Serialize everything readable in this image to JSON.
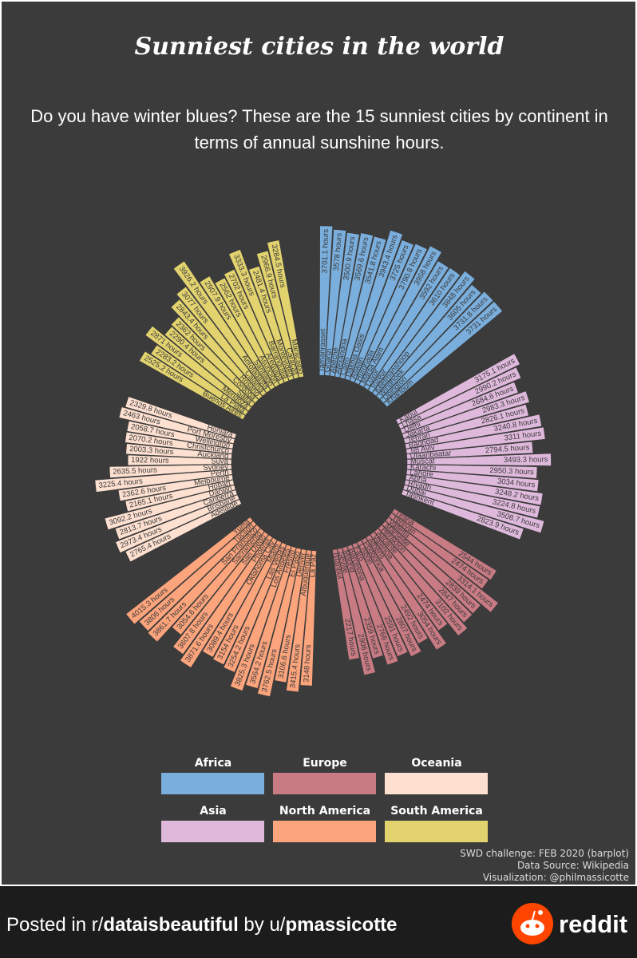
{
  "chart_data": {
    "type": "radial_bar",
    "title": "Sunniest cities in the world",
    "subtitle": [
      "Do you have winter blues? These are the 15 sunniest cities by continent in",
      "terms of annual sunshine hours."
    ],
    "groups": [
      {
        "name": "Africa",
        "color": "#7aaedc",
        "categories": [
          "Tamanrasset",
          "Ghanzi",
          "Abéché",
          "Alexandria",
          "Cairo",
          "Dakhla Oasis",
          "Aswan",
          "Hurghada",
          "Marsa Alam",
          "Luxor",
          "Tozeur",
          "Keetmanshoop",
          "Windhoek",
          "Upington",
          "Khartoum"
        ],
        "values": [
          3701.1,
          3578,
          3500.9,
          3569.6,
          3541.8,
          3943.4,
          3725,
          3790.8,
          3958,
          3592,
          3610,
          3848,
          3605,
          3731.8,
          3731
        ],
        "value_labels": [
          "3701.1 hours",
          "3578 hours",
          "3500.9 hours",
          "3569.6 hours",
          "3541.8 hours",
          "3943.4 hours",
          "3725 hours",
          "3790.8 hours",
          "3958 hours",
          "3592 hours",
          "3610 hours",
          "3848 hours",
          "3605 hours",
          "3731.8 hours",
          "3731 hours"
        ]
      },
      {
        "name": "Asia",
        "color": "#dfb9dc",
        "categories": [
          "Kabul",
          "Lhasa",
          "Delhi",
          "Jakarta",
          "Tehran",
          "Baghdad",
          "Tel Aviv",
          "Ulaanbaatar",
          "Muscat",
          "Karachi",
          "Lahore",
          "Abha",
          "Riyadh",
          "Dubai",
          "Tashkent"
        ],
        "values": [
          3175.1,
          2990.2,
          2684.6,
          2983.3,
          2826.1,
          3240.8,
          3311,
          2794.5,
          3493.3,
          2950.3,
          3034,
          3248.2,
          3224.8,
          3508.7,
          2823.9
        ],
        "value_labels": [
          "3175.1 hours",
          "2990.2 hours",
          "2684.6 hours",
          "2983.3 hours",
          "2826.1 hours",
          "3240.8 hours",
          "3311 hours",
          "2794.5 hours",
          "3493.3 hours",
          "2950.3 hours",
          "3034 hours",
          "3248.2 hours",
          "3224.8 hours",
          "3508.7 hours",
          "2823.9 hours"
        ]
      },
      {
        "name": "Europe",
        "color": "#c97b84",
        "categories": [
          "Tirana",
          "Yerevan",
          "Valletta",
          "Marseille",
          "Heraklion",
          "Alicante",
          "Valencia",
          "Athens",
          "Podgorica",
          "Lisbon",
          "Faro",
          "Barcelona",
          "Madrid",
          "Seville",
          "Istanbul"
        ],
        "values": [
          2544,
          2474,
          3314.1,
          2839,
          2847,
          3102,
          2474,
          3054,
          2492,
          2807,
          2591,
          2766,
          2359,
          2906,
          2217
        ],
        "value_labels": [
          "2544 hours",
          "2474 hours",
          "3314.1 hours",
          "2839 hours",
          "2847 hours",
          "3102 hours",
          "2474 hours",
          "3054 hours",
          "2492 hours",
          "2807 hours",
          "2591 hours",
          "2766 hours",
          "2359 hours",
          "2906 hours",
          "2217 hours"
        ]
      },
      {
        "name": "North America",
        "color": "#fca47c",
        "categories": [
          "La Paz",
          "Albuquerque",
          "Denver",
          "El Paso",
          "Fresno",
          "Los Angeles",
          "Las Vegas",
          "Miami",
          "Oklahoma City",
          "Phoenix",
          "San Diego",
          "Sacramento",
          "San Francisco",
          "Tucson",
          "Yuma"
        ],
        "values": [
          3148,
          3415.4,
          3106.6,
          3762.5,
          3564.2,
          3825.3,
          3254.2,
          3154,
          3089.4,
          3871.6,
          3607.8,
          3054.6,
          3861.7,
          3806,
          4015.3
        ],
        "value_labels": [
          "3148 hours",
          "3415.4 hours",
          "3106.6 hours",
          "3762.5 hours",
          "3564.2 hours",
          "3825.3 hours",
          "3254.2 hours",
          "3154 hours",
          "3089.4 hours",
          "3871.6 hours",
          "3607.8 hours",
          "3054.6 hours",
          "3861.7 hours",
          "3806 hours",
          "4015.3 hours"
        ]
      },
      {
        "name": "Oceania",
        "color": "#fde0d0",
        "categories": [
          "Adelaide",
          "Brisbane",
          "Canberra",
          "Darwin",
          "Hobart",
          "Melbourne",
          "Perth",
          "Sydney",
          "Suva",
          "Auckland",
          "Christchurch",
          "Wellington",
          "Port Moresby",
          "Honiara"
        ],
        "values": [
          2765.4,
          2973.4,
          2813.7,
          3092.2,
          2165.1,
          2362.6,
          3225.4,
          2635.5,
          1922,
          2003.3,
          2070.2,
          2058.7,
          2463,
          2329.8
        ],
        "value_labels": [
          "2765.4 hours",
          "2973.4 hours",
          "2813.7 hours",
          "3092.2 hours",
          "2165.1 hours",
          "2362.6 hours",
          "3225.4 hours",
          "2635.5 hours",
          "1922 hours",
          "2003.3 hours",
          "2070.2 hours",
          "2058.7 hours",
          "2463 hours",
          "2329.8 hours"
        ]
      },
      {
        "name": "South America",
        "color": "#e3d36f",
        "categories": [
          "Buenos Aires",
          "La Plata",
          "Mendoza",
          "Salta",
          "Córdoba",
          "Rosario",
          "Calama",
          "Antofagasta",
          "Santiago",
          "Asunción",
          "Arequipa",
          "Barranquilla",
          "Montevideo",
          "Caracas",
          "Maracaibo"
        ],
        "values": [
          2525.2,
          2283.2,
          2871,
          2290.4,
          2362,
          2843.4,
          3077,
          3926.2,
          2907.9,
          2562,
          2702,
          3333.3,
          2481.4,
          2966.9,
          3284.5
        ],
        "value_labels": [
          "2525.2 hours",
          "2283.2 hours",
          "2871 hours",
          "2290.4 hours",
          "2362 hours",
          "2843.4 hours",
          "3077 hours",
          "3926.2 hours",
          "2907.9 hours",
          "2562 hours",
          "2702 hours",
          "3333.3 hours",
          "2481.4 hours",
          "2966.9 hours",
          "3284.5 hours"
        ]
      }
    ],
    "caption": [
      "SWD challenge: FEB 2020 (barplot)",
      "Data Source: Wikipedia",
      "Visualization: @philmassicotte"
    ]
  },
  "footer": {
    "posted": [
      "Posted in r/",
      "dataisbeautiful",
      " by u/",
      "pmassicotte"
    ],
    "brand": "reddit"
  }
}
